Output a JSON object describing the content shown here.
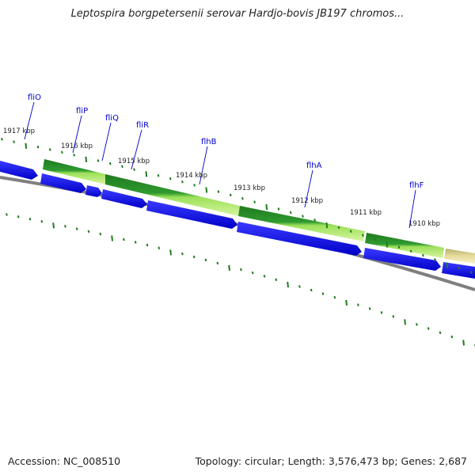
{
  "title": "Leptospira borgpetersenii serovar Hardjo-bovis JB197 chromos...",
  "footer": {
    "accession": "Accession: NC_008510",
    "summary": "Topology: circular; Length: 3,576,473 bp; Genes: 2,687"
  },
  "ruler": [
    {
      "label": "1917 kbp",
      "kbp": 1917
    },
    {
      "label": "1916 kbp",
      "kbp": 1916
    },
    {
      "label": "1915 kbp",
      "kbp": 1915
    },
    {
      "label": "1914 kbp",
      "kbp": 1914
    },
    {
      "label": "1913 kbp",
      "kbp": 1913
    },
    {
      "label": "1912 kbp",
      "kbp": 1912
    },
    {
      "label": "1911 kbp",
      "kbp": 1911
    },
    {
      "label": "1910 kbp",
      "kbp": 1910
    }
  ],
  "genes": [
    {
      "name": "fliO"
    },
    {
      "name": "fliP"
    },
    {
      "name": "fliQ"
    },
    {
      "name": "fliR"
    },
    {
      "name": "flhB"
    },
    {
      "name": "flhA"
    },
    {
      "name": "flhF"
    }
  ],
  "colors": {
    "cds": "#0000ee",
    "feature_dark": "#1f7a1f",
    "feature_light": "#9ce05a",
    "feature_pale": "#e6dc9c",
    "backbone": "#808080",
    "ticks": "#1f7a1f",
    "gene_label": "#0000cc"
  }
}
